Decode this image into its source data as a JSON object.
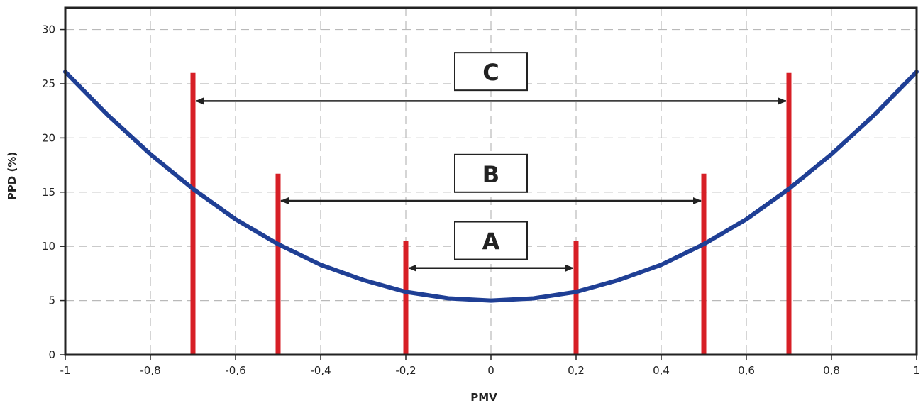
{
  "chart_data": {
    "type": "line",
    "title": "",
    "xlabel": "PMV",
    "ylabel": "PPD (%)",
    "xlim": [
      -1,
      1
    ],
    "ylim": [
      0,
      32
    ],
    "grid": true,
    "x_ticks": [
      -1,
      -0.8,
      -0.6,
      -0.4,
      -0.2,
      0,
      0.2,
      0.4,
      0.6,
      0.8,
      1
    ],
    "x_tick_labels": [
      "-1",
      "-0,8",
      "-0,6",
      "-0,4",
      "-0,2",
      "0",
      "0,2",
      "0,4",
      "0,6",
      "0,8",
      "1"
    ],
    "y_ticks": [
      0,
      5,
      10,
      15,
      20,
      25,
      30
    ],
    "y_tick_labels": [
      "0",
      "5",
      "10",
      "15",
      "20",
      "25",
      "30"
    ],
    "series": [
      {
        "color": "#1f3f95",
        "x": [
          -1,
          -0.9,
          -0.8,
          -0.7,
          -0.6,
          -0.5,
          -0.4,
          -0.3,
          -0.2,
          -0.1,
          0,
          0.1,
          0.2,
          0.3,
          0.4,
          0.5,
          0.6,
          0.7,
          0.8,
          0.9,
          1
        ],
        "y": [
          26.1,
          22.1,
          18.5,
          15.3,
          12.5,
          10.2,
          8.3,
          6.9,
          5.8,
          5.2,
          5.0,
          5.2,
          5.8,
          6.9,
          8.3,
          10.2,
          12.5,
          15.3,
          18.5,
          22.1,
          26.1
        ]
      }
    ],
    "markers": [
      {
        "x": -0.7,
        "height": 26
      },
      {
        "x": -0.5,
        "height": 16.7
      },
      {
        "x": -0.2,
        "height": 10.5
      },
      {
        "x": 0.2,
        "height": 10.5
      },
      {
        "x": 0.5,
        "height": 16.7
      },
      {
        "x": 0.7,
        "height": 26
      }
    ],
    "marker_color": "#d71f26",
    "ranges": [
      {
        "label": "A",
        "from": -0.2,
        "to": 0.2,
        "arrow_y": 8,
        "box_y": 10.5
      },
      {
        "label": "B",
        "from": -0.5,
        "to": 0.5,
        "arrow_y": 14.2,
        "box_y": 16.7
      },
      {
        "label": "C",
        "from": -0.7,
        "to": 0.7,
        "arrow_y": 23.4,
        "box_y": 26.1
      }
    ]
  }
}
